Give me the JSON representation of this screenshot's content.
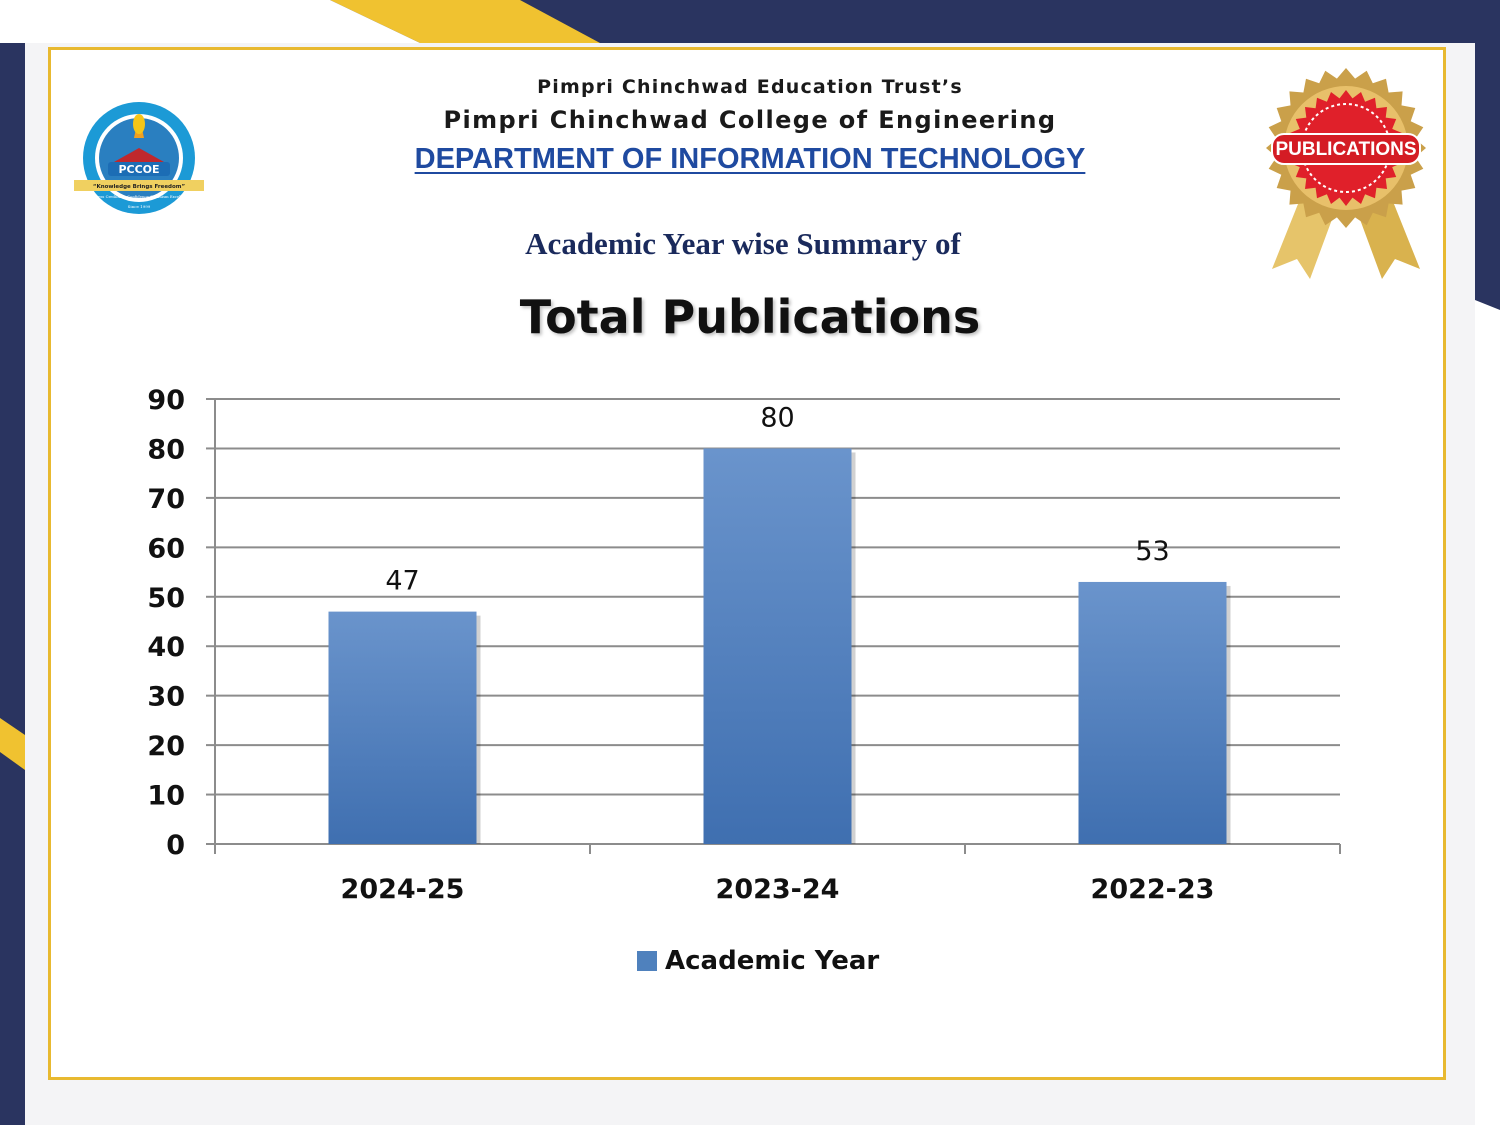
{
  "header": {
    "trust_name": "Pimpri Chinchwad Education Trust’s",
    "college_name": "Pimpri Chinchwad College of Engineering",
    "department": "DEPARTMENT OF INFORMATION TECHNOLOGY"
  },
  "logo": {
    "text": "PCCOE",
    "motto": "“Knowledge Brings Freedom”",
    "tagline": "Progress Credibility Confidence Optimism Excellence",
    "since": "Since 1999"
  },
  "badge": {
    "label": "PUBLICATIONS"
  },
  "slide": {
    "subtitle": "Academic Year wise Summary of"
  },
  "colors": {
    "navy": "#2a3460",
    "gold": "#e8b930",
    "bar": "#4f81bd",
    "badge_red": "#e0202a"
  },
  "chart_data": {
    "type": "bar",
    "title": "Total Publications",
    "categories": [
      "2024-25",
      "2023-24",
      "2022-23"
    ],
    "series": [
      {
        "name": "Academic Year",
        "values": [
          47,
          80,
          53
        ]
      }
    ],
    "data_labels": [
      "47",
      "80",
      "53"
    ],
    "ylim": [
      0,
      90
    ],
    "yticks": [
      0,
      10,
      20,
      30,
      40,
      50,
      60,
      70,
      80,
      90
    ],
    "grid": true,
    "legend": "bottom"
  }
}
